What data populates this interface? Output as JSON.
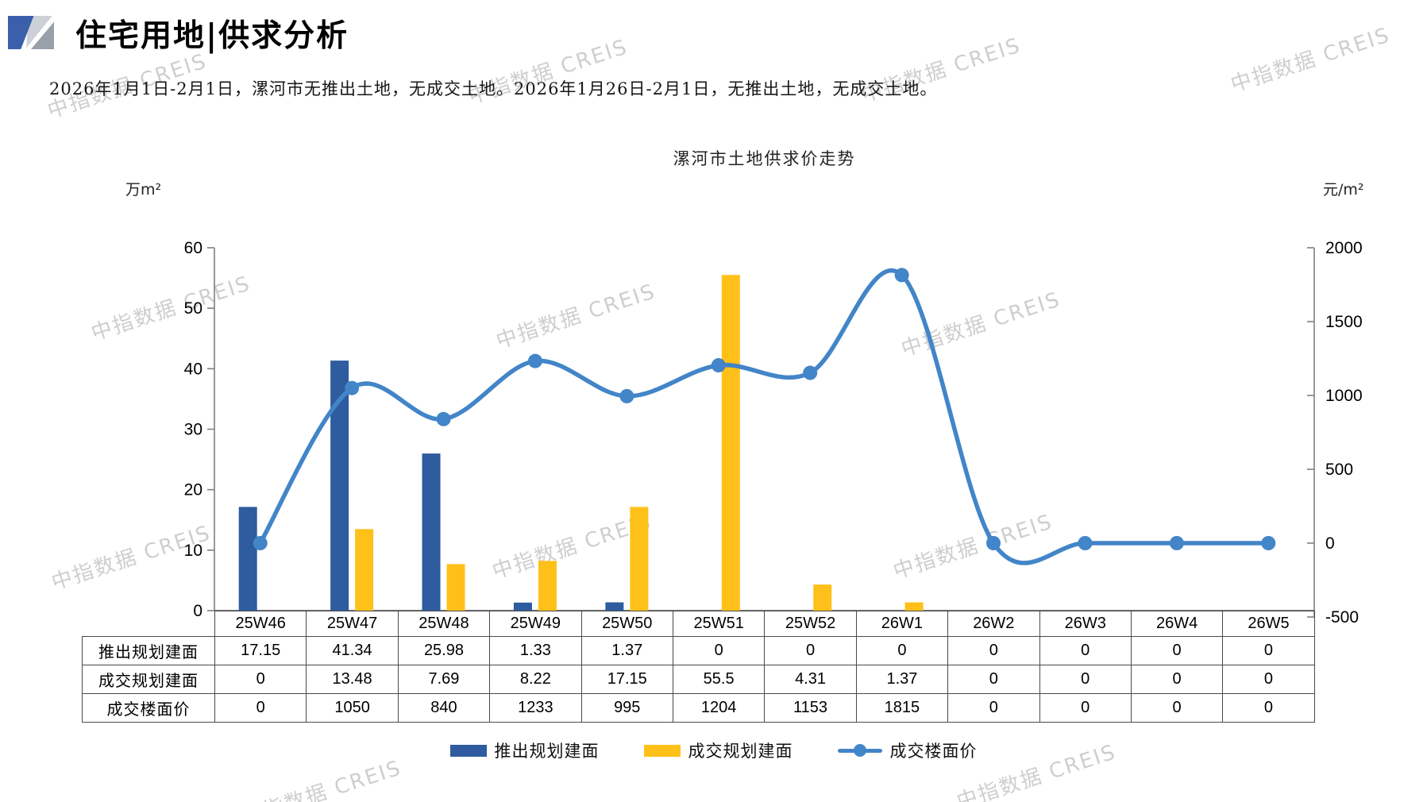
{
  "header": {
    "title": "住宅用地|供求分析",
    "summary": "2026年1月1日-2月1日，漯河市无推出土地，无成交土地。2026年1月26日-2月1日，无推出土地，无成交土地。"
  },
  "watermark": {
    "text": "中指数据 CREIS"
  },
  "chart_data": {
    "type": "bar+line",
    "title": "漯河市土地供求价走势",
    "categories": [
      "25W46",
      "25W47",
      "25W48",
      "25W49",
      "25W50",
      "25W51",
      "25W52",
      "26W1",
      "26W2",
      "26W3",
      "26W4",
      "26W5"
    ],
    "series": [
      {
        "name": "推出规划建面",
        "type": "bar",
        "axis": "left",
        "color": "#2e5c9f",
        "values": [
          17.15,
          41.34,
          25.98,
          1.33,
          1.37,
          0,
          0,
          0,
          0,
          0,
          0,
          0
        ]
      },
      {
        "name": "成交规划建面",
        "type": "bar",
        "axis": "left",
        "color": "#ffc01a",
        "values": [
          0,
          13.48,
          7.69,
          8.22,
          17.15,
          55.5,
          4.31,
          1.37,
          0,
          0,
          0,
          0
        ]
      },
      {
        "name": "成交楼面价",
        "type": "line",
        "axis": "right",
        "color": "#4285c8",
        "smooth": true,
        "values": [
          0,
          1050,
          840,
          1233,
          995,
          1204,
          1153,
          1815,
          0,
          0,
          0,
          0
        ]
      }
    ],
    "left_axis": {
      "unit": "万m²",
      "min": 0,
      "max": 60,
      "ticks": [
        60,
        50,
        40,
        30,
        20,
        10,
        0
      ]
    },
    "right_axis": {
      "unit": "元/m²",
      "min": -500,
      "max": 2000,
      "ticks": [
        2000,
        1500,
        1000,
        500,
        0,
        -500
      ]
    },
    "legend_position": "bottom",
    "grid": false
  },
  "table": {
    "row_labels": [
      "推出规划建面",
      "成交规划建面",
      "成交楼面价"
    ],
    "rows": [
      [
        "17.15",
        "41.34",
        "25.98",
        "1.33",
        "1.37",
        "0",
        "0",
        "0",
        "0",
        "0",
        "0",
        "0"
      ],
      [
        "0",
        "13.48",
        "7.69",
        "8.22",
        "17.15",
        "55.5",
        "4.31",
        "1.37",
        "0",
        "0",
        "0",
        "0"
      ],
      [
        "0",
        "1050",
        "840",
        "1233",
        "995",
        "1204",
        "1153",
        "1815",
        "0",
        "0",
        "0",
        "0"
      ]
    ]
  }
}
